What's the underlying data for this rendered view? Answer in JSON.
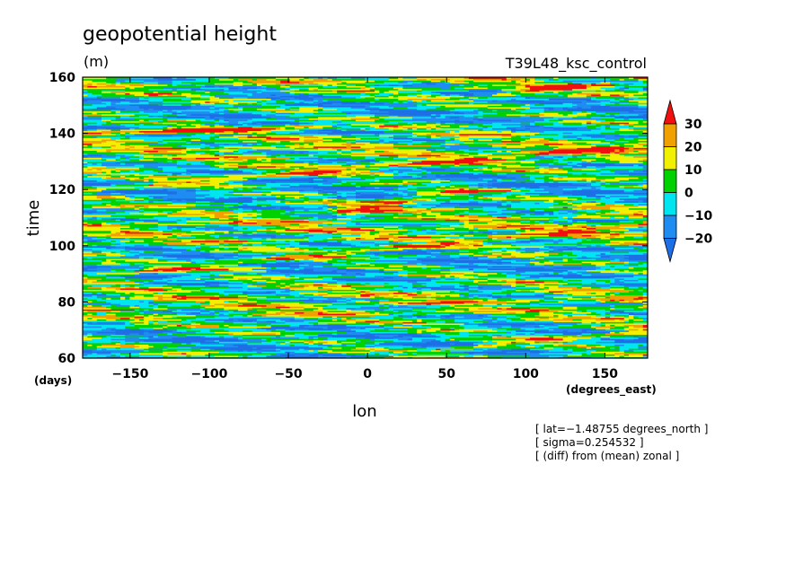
{
  "chart_data": {
    "type": "heatmap",
    "title": "geopotential height",
    "units": "(m)",
    "experiment": "T39L48_ksc_control",
    "xlabel": "lon",
    "x_units": "(degrees_east)",
    "ylabel": "time",
    "y_units": "(days)",
    "xlim": [
      -180,
      177
    ],
    "ylim": [
      60,
      160
    ],
    "x_ticks": [
      -150,
      -100,
      -50,
      0,
      50,
      100,
      150
    ],
    "y_ticks": [
      60,
      80,
      100,
      120,
      140,
      160
    ],
    "colorbar": {
      "levels": [
        -20,
        -10,
        0,
        10,
        20,
        30
      ],
      "tick_labels": [
        "−20",
        "−10",
        "0",
        "10",
        "20",
        "30"
      ],
      "colors": [
        "#1e6ee6",
        "#1e8cf0",
        "#00e6f0",
        "#00d200",
        "#f0f000",
        "#f0a000",
        "#f01010"
      ],
      "extend": "both"
    },
    "annotations": [
      "[ lat=−1.48755 degrees_north ]",
      "[ sigma=0.254532 ]",
      "[ (diff) from (mean) zonal ]"
    ],
    "features": [
      {
        "kind": "positive band",
        "lon": [
          -180,
          177
        ],
        "time": [
          89,
          108
        ]
      },
      {
        "kind": "positive band",
        "lon": [
          -180,
          177
        ],
        "time": [
          120,
          136
        ]
      },
      {
        "kind": "positive blob",
        "lon": [
          -20,
          60
        ],
        "time": [
          112,
          120
        ]
      },
      {
        "kind": "positive band",
        "lon": [
          80,
          177
        ],
        "time": [
          154,
          160
        ]
      },
      {
        "kind": "positive band",
        "lon": [
          40,
          177
        ],
        "time": [
          63,
          70
        ]
      },
      {
        "kind": "positive band",
        "lon": [
          -180,
          -30
        ],
        "time": [
          140,
          143
        ]
      }
    ]
  }
}
